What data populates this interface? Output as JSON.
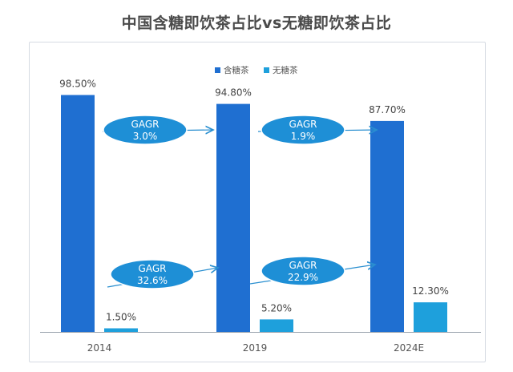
{
  "title": "中国含糖即饮茶占比vs无糖即饮茶占比",
  "chart_data": {
    "type": "bar",
    "title": "中国含糖即饮茶占比vs无糖即饮茶占比",
    "categories": [
      "2014",
      "2019",
      "2024E"
    ],
    "series": [
      {
        "name": "含糖茶",
        "values": [
          98.5,
          94.8,
          87.7
        ],
        "labels": [
          "98.50%",
          "94.80%",
          "87.70%"
        ],
        "color": "#1f6fd1"
      },
      {
        "name": "无糖茶",
        "values": [
          1.5,
          5.2,
          12.3
        ],
        "labels": [
          "1.50%",
          "5.20%",
          "12.30%"
        ],
        "color": "#1ea0dc"
      }
    ],
    "ylim": [
      0,
      100
    ],
    "grid": false,
    "legend": "top-center",
    "annotations": [
      {
        "series": "含糖茶",
        "from": "2014",
        "to": "2019",
        "line1": "GAGR",
        "line2": "3.0%"
      },
      {
        "series": "含糖茶",
        "from": "2019",
        "to": "2024E",
        "line1": "GAGR",
        "line2": "1.9%"
      },
      {
        "series": "无糖茶",
        "from": "2014",
        "to": "2019",
        "line1": "GAGR",
        "line2": "32.6%"
      },
      {
        "series": "无糖茶",
        "from": "2019",
        "to": "2024E",
        "line1": "GAGR",
        "line2": "22.9%"
      }
    ],
    "colors": {
      "bubble": "#1e8fd6",
      "arrow": "#2a8fd0",
      "axis": "#9aa3ad",
      "label": "#444444"
    }
  }
}
